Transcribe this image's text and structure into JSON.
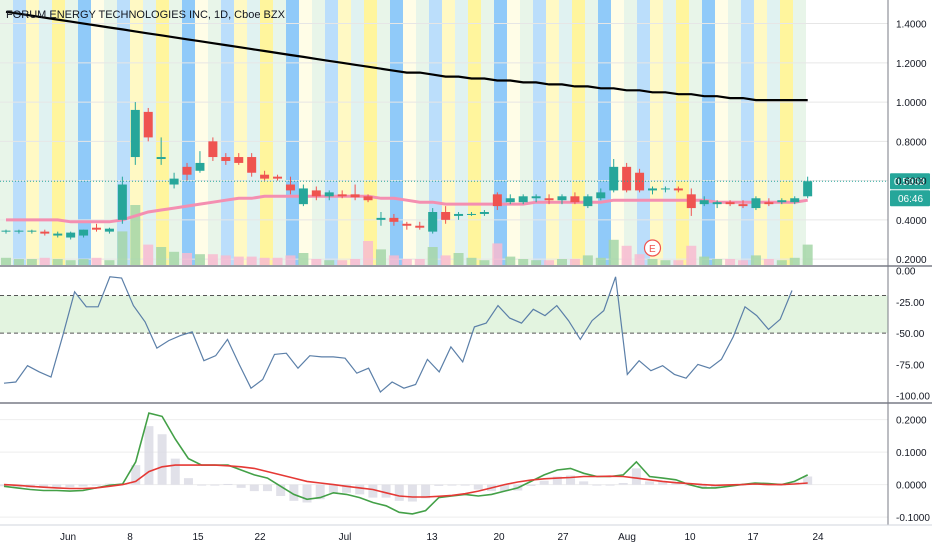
{
  "header": {
    "symbol_title": "FORUM ENERGY TECHNOLOGIES INC, 1D, Cboe BZX"
  },
  "colors": {
    "up": "#26a69a",
    "down": "#ef5350",
    "ma": "#f48fb1",
    "long_ma": "#000000",
    "williams_line": "#5b7fa8",
    "ppo_line": "#43a047",
    "signal_line": "#e53935",
    "price_tag": "#26a69a",
    "band_fill": "#e3f4e0"
  },
  "chart_data": [
    {
      "type": "candlestick",
      "panel": "price",
      "title": "FORUM ENERGY TECHNOLOGIES INC, 1D, Cboe BZX",
      "x_axis_labels": [
        "Jun",
        "8",
        "15",
        "22",
        "Jul",
        "13",
        "20",
        "27",
        "Aug",
        "10",
        "17",
        "24"
      ],
      "y_ticks": [
        0.2,
        0.4,
        0.6,
        0.8,
        1.0,
        1.2,
        1.4
      ],
      "y_tick_labels": [
        "0.2000",
        "0.4000",
        "0.6000",
        "0.8000",
        "1.0000",
        "1.2000",
        "1.4000"
      ],
      "ylim": [
        0.17,
        1.52
      ],
      "last_price": "0.5968",
      "countdown": "06:46",
      "earnings_marker": "E",
      "candles": [
        {
          "date": "May 26",
          "o": 0.34,
          "h": 0.35,
          "l": 0.33,
          "c": 0.345
        },
        {
          "date": "May 27",
          "o": 0.34,
          "h": 0.35,
          "l": 0.33,
          "c": 0.345
        },
        {
          "date": "May 28",
          "o": 0.34,
          "h": 0.35,
          "l": 0.33,
          "c": 0.345
        },
        {
          "date": "May 29",
          "o": 0.34,
          "h": 0.35,
          "l": 0.32,
          "c": 0.33
        },
        {
          "date": "Jun 1",
          "o": 0.32,
          "h": 0.34,
          "l": 0.31,
          "c": 0.33
        },
        {
          "date": "Jun 2",
          "o": 0.31,
          "h": 0.34,
          "l": 0.3,
          "c": 0.335
        },
        {
          "date": "Jun 3",
          "o": 0.32,
          "h": 0.35,
          "l": 0.31,
          "c": 0.35
        },
        {
          "date": "Jun 4",
          "o": 0.36,
          "h": 0.38,
          "l": 0.34,
          "c": 0.35
        },
        {
          "date": "Jun 5",
          "o": 0.34,
          "h": 0.36,
          "l": 0.33,
          "c": 0.355
        },
        {
          "date": "Jun 8",
          "o": 0.4,
          "h": 0.62,
          "l": 0.38,
          "c": 0.58
        },
        {
          "date": "Jun 9",
          "o": 0.72,
          "h": 1.0,
          "l": 0.68,
          "c": 0.96
        },
        {
          "date": "Jun 10",
          "o": 0.95,
          "h": 0.97,
          "l": 0.8,
          "c": 0.82
        },
        {
          "date": "Jun 11",
          "o": 0.71,
          "h": 0.82,
          "l": 0.68,
          "c": 0.72
        },
        {
          "date": "Jun 12",
          "o": 0.58,
          "h": 0.64,
          "l": 0.56,
          "c": 0.61
        },
        {
          "date": "Jun 15",
          "o": 0.67,
          "h": 0.69,
          "l": 0.6,
          "c": 0.63
        },
        {
          "date": "Jun 16",
          "o": 0.65,
          "h": 0.75,
          "l": 0.64,
          "c": 0.69
        },
        {
          "date": "Jun 17",
          "o": 0.8,
          "h": 0.82,
          "l": 0.7,
          "c": 0.72
        },
        {
          "date": "Jun 18",
          "o": 0.72,
          "h": 0.74,
          "l": 0.68,
          "c": 0.7
        },
        {
          "date": "Jun 19",
          "o": 0.72,
          "h": 0.74,
          "l": 0.68,
          "c": 0.69
        },
        {
          "date": "Jun 22",
          "o": 0.72,
          "h": 0.74,
          "l": 0.62,
          "c": 0.64
        },
        {
          "date": "Jun 23",
          "o": 0.63,
          "h": 0.65,
          "l": 0.6,
          "c": 0.61
        },
        {
          "date": "Jun 24",
          "o": 0.62,
          "h": 0.63,
          "l": 0.6,
          "c": 0.61
        },
        {
          "date": "Jun 25",
          "o": 0.58,
          "h": 0.62,
          "l": 0.53,
          "c": 0.55
        },
        {
          "date": "Jun 26",
          "o": 0.48,
          "h": 0.58,
          "l": 0.47,
          "c": 0.56
        },
        {
          "date": "Jun 29",
          "o": 0.55,
          "h": 0.57,
          "l": 0.5,
          "c": 0.52
        },
        {
          "date": "Jun 30",
          "o": 0.52,
          "h": 0.55,
          "l": 0.5,
          "c": 0.54
        },
        {
          "date": "Jul 1",
          "o": 0.53,
          "h": 0.55,
          "l": 0.51,
          "c": 0.52
        },
        {
          "date": "Jul 2",
          "o": 0.53,
          "h": 0.58,
          "l": 0.5,
          "c": 0.515
        },
        {
          "date": "Jul 6",
          "o": 0.52,
          "h": 0.53,
          "l": 0.49,
          "c": 0.5
        },
        {
          "date": "Jul 7",
          "o": 0.4,
          "h": 0.44,
          "l": 0.37,
          "c": 0.41
        },
        {
          "date": "Jul 8",
          "o": 0.41,
          "h": 0.43,
          "l": 0.37,
          "c": 0.39
        },
        {
          "date": "Jul 9",
          "o": 0.38,
          "h": 0.39,
          "l": 0.35,
          "c": 0.37
        },
        {
          "date": "Jul 10",
          "o": 0.37,
          "h": 0.39,
          "l": 0.35,
          "c": 0.36
        },
        {
          "date": "Jul 13",
          "o": 0.34,
          "h": 0.46,
          "l": 0.33,
          "c": 0.44
        },
        {
          "date": "Jul 14",
          "o": 0.44,
          "h": 0.47,
          "l": 0.38,
          "c": 0.4
        },
        {
          "date": "Jul 15",
          "o": 0.42,
          "h": 0.44,
          "l": 0.4,
          "c": 0.43
        },
        {
          "date": "Jul 16",
          "o": 0.43,
          "h": 0.44,
          "l": 0.42,
          "c": 0.43
        },
        {
          "date": "Jul 17",
          "o": 0.43,
          "h": 0.45,
          "l": 0.42,
          "c": 0.44
        },
        {
          "date": "Jul 20",
          "o": 0.53,
          "h": 0.54,
          "l": 0.45,
          "c": 0.47
        },
        {
          "date": "Jul 21",
          "o": 0.49,
          "h": 0.53,
          "l": 0.48,
          "c": 0.51
        },
        {
          "date": "Jul 22",
          "o": 0.49,
          "h": 0.53,
          "l": 0.48,
          "c": 0.52
        },
        {
          "date": "Jul 23",
          "o": 0.51,
          "h": 0.53,
          "l": 0.49,
          "c": 0.52
        },
        {
          "date": "Jul 24",
          "o": 0.51,
          "h": 0.53,
          "l": 0.48,
          "c": 0.5
        },
        {
          "date": "Jul 27",
          "o": 0.5,
          "h": 0.53,
          "l": 0.48,
          "c": 0.52
        },
        {
          "date": "Jul 28",
          "o": 0.52,
          "h": 0.54,
          "l": 0.48,
          "c": 0.49
        },
        {
          "date": "Jul 29",
          "o": 0.47,
          "h": 0.53,
          "l": 0.46,
          "c": 0.52
        },
        {
          "date": "Jul 30",
          "o": 0.51,
          "h": 0.56,
          "l": 0.5,
          "c": 0.54
        },
        {
          "date": "Jul 31",
          "o": 0.55,
          "h": 0.71,
          "l": 0.54,
          "c": 0.67
        },
        {
          "date": "Aug 3",
          "o": 0.67,
          "h": 0.69,
          "l": 0.54,
          "c": 0.55
        },
        {
          "date": "Aug 4",
          "o": 0.64,
          "h": 0.66,
          "l": 0.54,
          "c": 0.55
        },
        {
          "date": "Aug 5",
          "o": 0.55,
          "h": 0.57,
          "l": 0.53,
          "c": 0.56
        },
        {
          "date": "Aug 6",
          "o": 0.56,
          "h": 0.57,
          "l": 0.54,
          "c": 0.56
        },
        {
          "date": "Aug 7",
          "o": 0.56,
          "h": 0.57,
          "l": 0.54,
          "c": 0.55
        },
        {
          "date": "Aug 10",
          "o": 0.53,
          "h": 0.56,
          "l": 0.42,
          "c": 0.46
        },
        {
          "date": "Aug 11",
          "o": 0.48,
          "h": 0.52,
          "l": 0.47,
          "c": 0.5
        },
        {
          "date": "Aug 12",
          "o": 0.48,
          "h": 0.5,
          "l": 0.46,
          "c": 0.49
        },
        {
          "date": "Aug 13",
          "o": 0.49,
          "h": 0.5,
          "l": 0.47,
          "c": 0.48
        },
        {
          "date": "Aug 14",
          "o": 0.48,
          "h": 0.5,
          "l": 0.46,
          "c": 0.47
        },
        {
          "date": "Aug 17",
          "o": 0.46,
          "h": 0.52,
          "l": 0.45,
          "c": 0.51
        },
        {
          "date": "Aug 18",
          "o": 0.49,
          "h": 0.51,
          "l": 0.47,
          "c": 0.48
        },
        {
          "date": "Aug 19",
          "o": 0.49,
          "h": 0.51,
          "l": 0.48,
          "c": 0.5
        },
        {
          "date": "Aug 20",
          "o": 0.49,
          "h": 0.52,
          "l": 0.48,
          "c": 0.51
        },
        {
          "date": "Aug 21",
          "o": 0.52,
          "h": 0.62,
          "l": 0.51,
          "c": 0.5968
        }
      ],
      "volume": [
        0.06,
        0.05,
        0.05,
        0.06,
        0.05,
        0.04,
        0.05,
        0.06,
        0.04,
        0.28,
        0.5,
        0.17,
        0.15,
        0.11,
        0.1,
        0.09,
        0.09,
        0.08,
        0.07,
        0.07,
        0.06,
        0.06,
        0.08,
        0.1,
        0.05,
        0.04,
        0.04,
        0.05,
        0.2,
        0.13,
        0.08,
        0.05,
        0.05,
        0.15,
        0.08,
        0.1,
        0.06,
        0.04,
        0.18,
        0.07,
        0.05,
        0.04,
        0.04,
        0.05,
        0.05,
        0.08,
        0.06,
        0.21,
        0.16,
        0.09,
        0.05,
        0.04,
        0.04,
        0.16,
        0.07,
        0.05,
        0.05,
        0.04,
        0.08,
        0.05,
        0.04,
        0.06,
        0.17
      ],
      "ma": [
        0.4,
        0.4,
        0.4,
        0.4,
        0.4,
        0.39,
        0.39,
        0.39,
        0.39,
        0.4,
        0.42,
        0.44,
        0.45,
        0.46,
        0.47,
        0.48,
        0.49,
        0.5,
        0.51,
        0.51,
        0.52,
        0.52,
        0.52,
        0.52,
        0.52,
        0.52,
        0.52,
        0.52,
        0.52,
        0.51,
        0.51,
        0.5,
        0.49,
        0.49,
        0.48,
        0.48,
        0.48,
        0.48,
        0.48,
        0.48,
        0.48,
        0.49,
        0.49,
        0.49,
        0.49,
        0.49,
        0.49,
        0.5,
        0.5,
        0.5,
        0.5,
        0.5,
        0.5,
        0.5,
        0.5,
        0.49,
        0.49,
        0.49,
        0.49,
        0.49,
        0.49,
        0.49,
        0.5
      ],
      "long_ma": [
        1.46,
        1.45,
        1.44,
        1.43,
        1.42,
        1.41,
        1.4,
        1.39,
        1.38,
        1.37,
        1.36,
        1.35,
        1.34,
        1.33,
        1.32,
        1.31,
        1.3,
        1.29,
        1.28,
        1.27,
        1.26,
        1.25,
        1.24,
        1.23,
        1.22,
        1.21,
        1.2,
        1.19,
        1.18,
        1.17,
        1.16,
        1.15,
        1.15,
        1.14,
        1.13,
        1.13,
        1.12,
        1.12,
        1.11,
        1.11,
        1.1,
        1.1,
        1.09,
        1.09,
        1.08,
        1.08,
        1.07,
        1.07,
        1.06,
        1.06,
        1.05,
        1.05,
        1.04,
        1.04,
        1.03,
        1.03,
        1.02,
        1.02,
        1.01,
        1.01,
        1.01,
        1.01,
        1.01
      ]
    },
    {
      "type": "line",
      "panel": "williams_r",
      "y_ticks": [
        0,
        -25,
        -50,
        -75,
        -100
      ],
      "y_tick_labels": [
        "0.00",
        "-25.00",
        "-50.00",
        "-75.00",
        "-100.00"
      ],
      "ylim": [
        -105,
        2
      ],
      "band": [
        -50,
        -20
      ],
      "values": [
        -90,
        -89,
        -76,
        -81,
        -85,
        -52,
        -17,
        -29,
        -29,
        -5,
        -6,
        -28,
        -41,
        -62,
        -56,
        -52,
        -49,
        -72,
        -68,
        -55,
        -75,
        -94,
        -87,
        -67,
        -66,
        -78,
        -68,
        -69,
        -69,
        -70,
        -82,
        -78,
        -97,
        -89,
        -94,
        -91,
        -71,
        -81,
        -61,
        -73,
        -45,
        -42,
        -28,
        -38,
        -42,
        -31,
        -36,
        -28,
        -40,
        -55,
        -40,
        -32,
        -5,
        -83,
        -72,
        -80,
        -76,
        -83,
        -86,
        -75,
        -78,
        -71,
        -53,
        -29,
        -36,
        -47,
        -39,
        -16
      ]
    },
    {
      "type": "line",
      "panel": "ppo",
      "y_ticks": [
        0.2,
        0.1,
        0.0,
        -0.1
      ],
      "y_tick_labels": [
        "0.2000",
        "0.1000",
        "0.0000",
        "-0.1000"
      ],
      "ylim": [
        -0.115,
        0.245
      ],
      "series": [
        {
          "key": "ppo",
          "values": [
            -0.005,
            -0.01,
            -0.015,
            -0.018,
            -0.018,
            -0.02,
            -0.018,
            -0.01,
            -0.002,
            0.002,
            0.07,
            0.22,
            0.21,
            0.14,
            0.08,
            0.06,
            0.06,
            0.06,
            0.045,
            0.03,
            0.02,
            -0.005,
            -0.03,
            -0.045,
            -0.04,
            -0.025,
            -0.03,
            -0.04,
            -0.055,
            -0.065,
            -0.085,
            -0.09,
            -0.08,
            -0.04,
            -0.035,
            -0.03,
            -0.035,
            -0.03,
            -0.02,
            -0.01,
            0.01,
            0.03,
            0.045,
            0.05,
            0.035,
            0.025,
            0.025,
            0.03,
            0.07,
            0.025,
            0.02,
            0.015,
            0.0,
            -0.01,
            -0.01,
            -0.005,
            0.0,
            0.005,
            0.003,
            0.0,
            0.01,
            0.03
          ]
        },
        {
          "key": "signal",
          "values": [
            0.0,
            -0.002,
            -0.005,
            -0.008,
            -0.01,
            -0.012,
            -0.012,
            -0.01,
            -0.005,
            0.0,
            0.01,
            0.04,
            0.055,
            0.06,
            0.06,
            0.06,
            0.06,
            0.058,
            0.055,
            0.05,
            0.04,
            0.03,
            0.02,
            0.01,
            0.005,
            0.0,
            -0.005,
            -0.01,
            -0.015,
            -0.025,
            -0.035,
            -0.038,
            -0.038,
            -0.036,
            -0.033,
            -0.028,
            -0.02,
            -0.01,
            0.0,
            0.008,
            0.014,
            0.018,
            0.02,
            0.022,
            0.025,
            0.025,
            0.026,
            0.025,
            0.02,
            0.015,
            0.01,
            0.006,
            0.003,
            0.0,
            -0.002,
            -0.001,
            0.0,
            0.002,
            0.0,
            0.0,
            0.002,
            0.005
          ]
        }
      ],
      "histogram": [
        -0.005,
        -0.008,
        -0.01,
        -0.01,
        -0.008,
        -0.008,
        -0.006,
        0.0,
        0.003,
        0.002,
        0.06,
        0.18,
        0.155,
        0.08,
        0.02,
        0.0,
        0.0,
        0.002,
        -0.01,
        -0.02,
        -0.02,
        -0.035,
        -0.05,
        -0.055,
        -0.045,
        -0.025,
        -0.025,
        -0.03,
        -0.04,
        -0.04,
        -0.05,
        -0.052,
        -0.042,
        -0.004,
        -0.002,
        -0.002,
        -0.015,
        -0.02,
        -0.02,
        -0.018,
        -0.004,
        0.012,
        0.025,
        0.028,
        0.01,
        0.0,
        -0.001,
        0.005,
        0.05,
        0.01,
        0.01,
        0.009,
        -0.003,
        -0.01,
        -0.008,
        -0.004,
        0.0,
        0.003,
        0.003,
        0.0,
        0.008,
        0.025
      ]
    }
  ]
}
